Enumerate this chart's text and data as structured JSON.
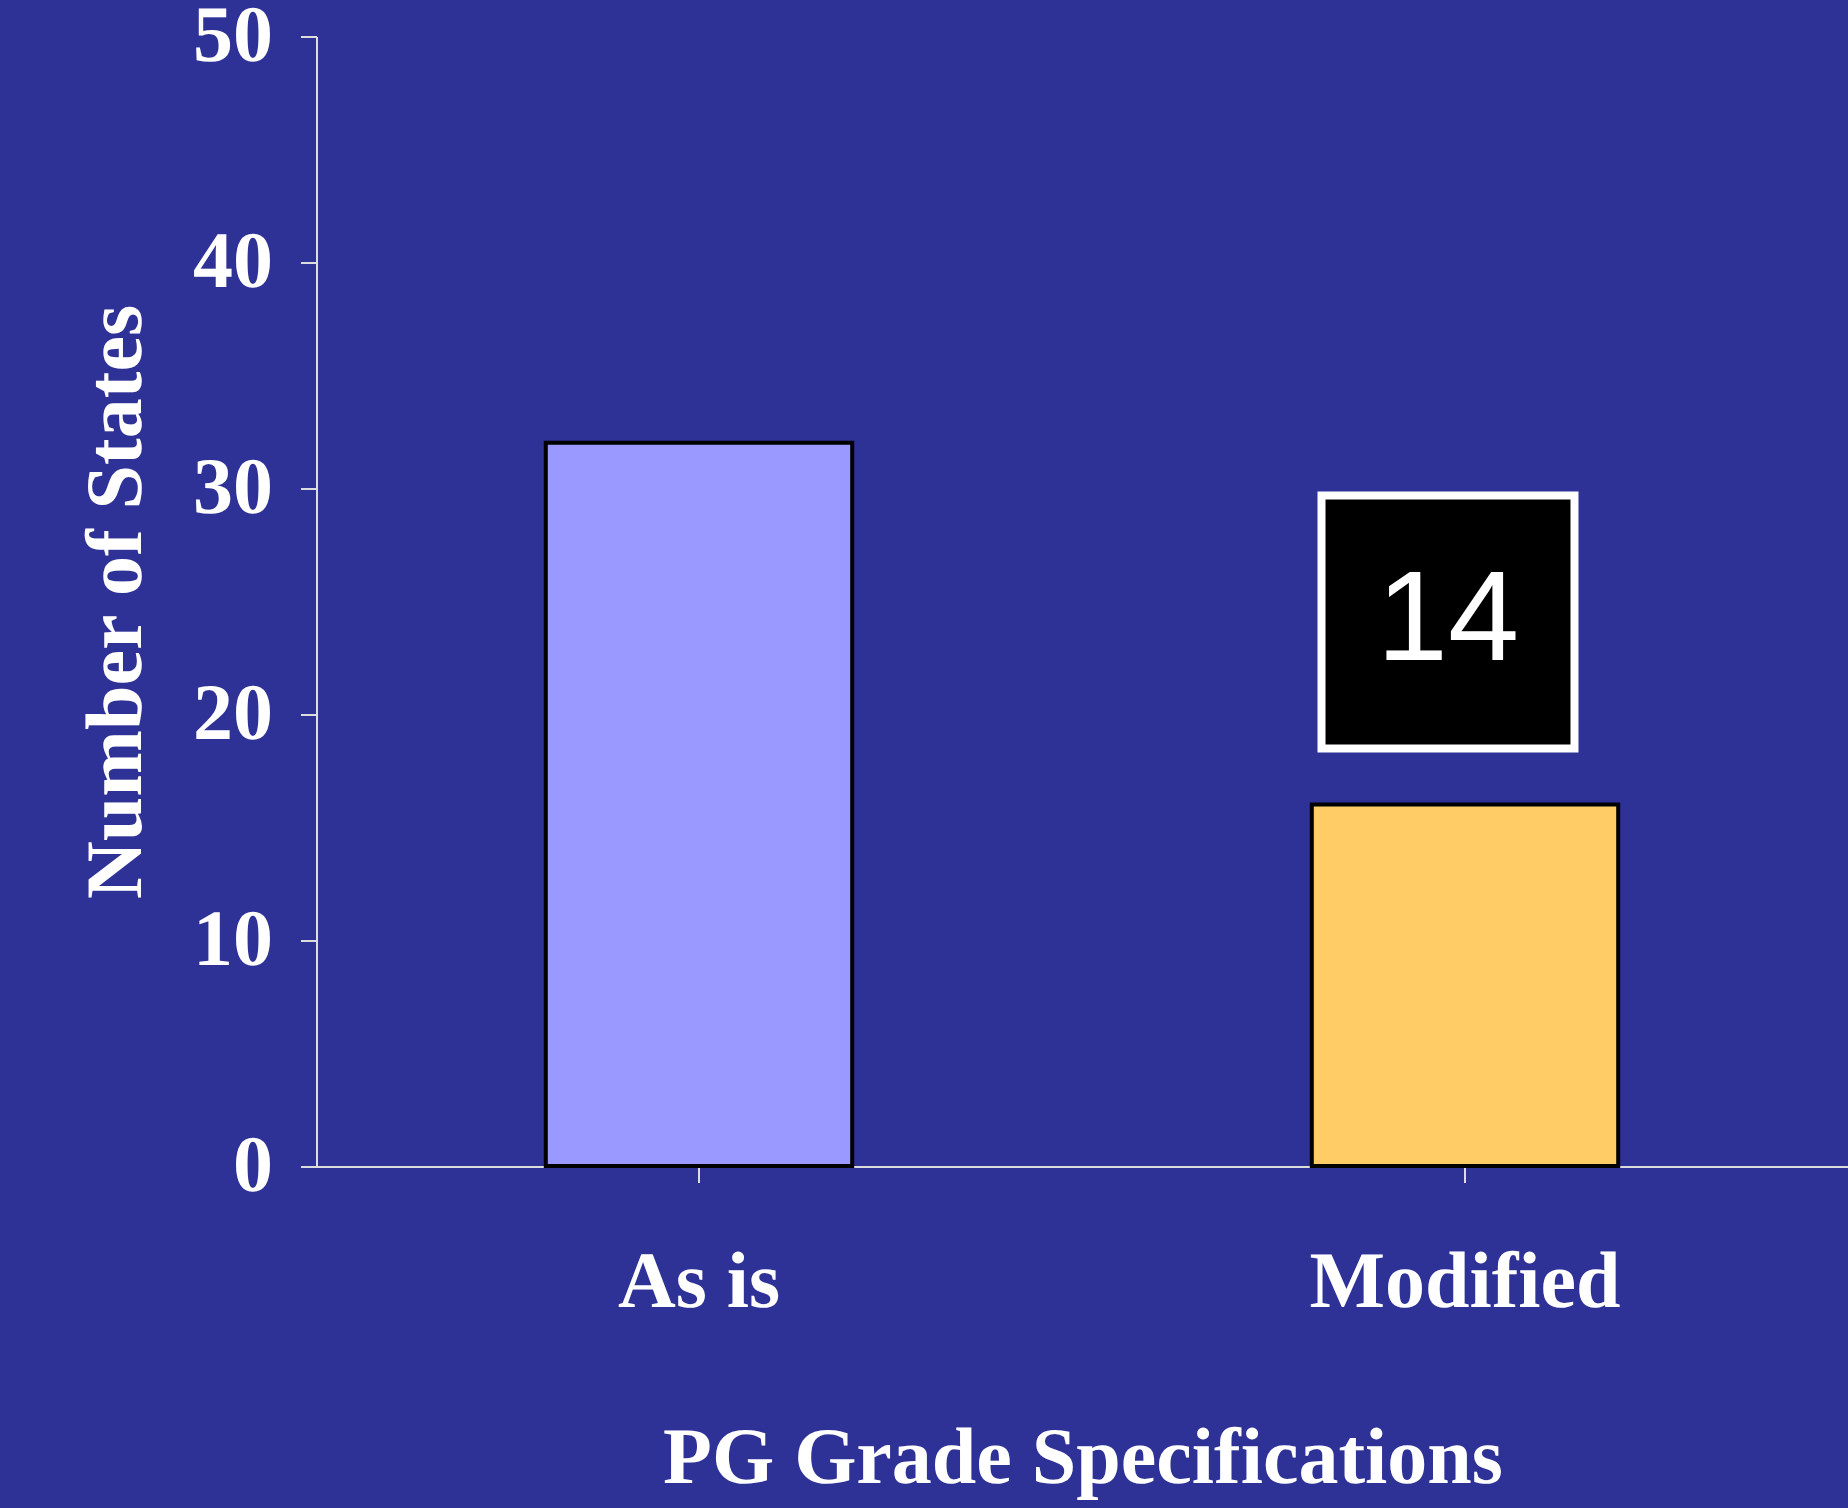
{
  "chart_data": {
    "type": "bar",
    "xlabel": "PG Grade Specifications",
    "ylabel": "Number of States",
    "categories": [
      "As is",
      "Modified"
    ],
    "values": [
      32,
      16
    ],
    "colors": [
      "#9999ff",
      "#ffcc66"
    ],
    "ylim": [
      0,
      50
    ],
    "yticks": [
      0,
      10,
      20,
      30,
      40,
      50
    ],
    "grid": false,
    "annotations": [
      "14"
    ]
  }
}
